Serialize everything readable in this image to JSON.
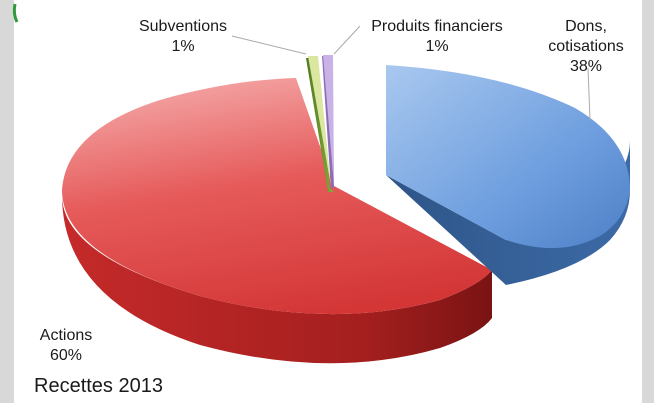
{
  "chart_data": {
    "type": "pie",
    "title": "Recettes 2013",
    "slices": [
      {
        "label": [
          "Dons,",
          "cotisations"
        ],
        "value": 38,
        "value_label": "38%",
        "color": "#5b8fd6"
      },
      {
        "label": [
          "Produits financiers"
        ],
        "value": 1,
        "value_label": "1%",
        "color": "#b79ad6"
      },
      {
        "label": [
          "Subventions"
        ],
        "value": 1,
        "value_label": "1%",
        "color": "#c7d86a"
      },
      {
        "label": [
          "Actions"
        ],
        "value": 60,
        "value_label": "60%",
        "color": "#de3b3b"
      }
    ],
    "style": "3d-exploded"
  },
  "colors": {
    "accent_bracket": "#2f9a3a",
    "subventions_side": "#5e8a2a"
  }
}
